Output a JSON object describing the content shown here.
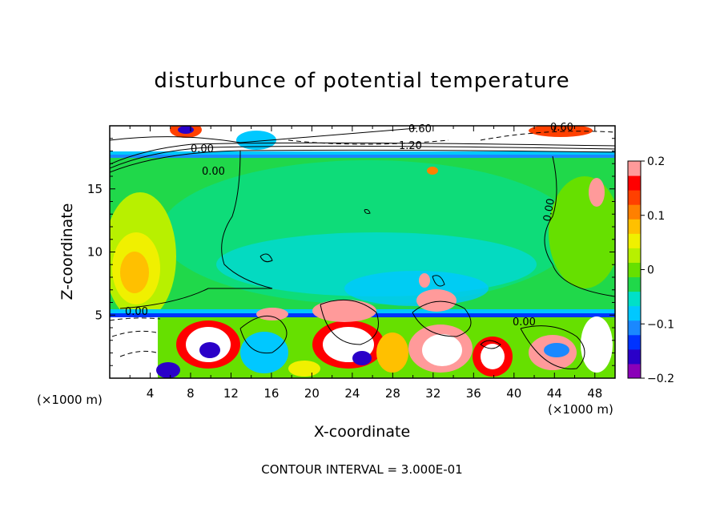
{
  "chart_data": {
    "type": "heatmap",
    "title": "disturbunce of potential temperature",
    "xlabel": "X-coordinate",
    "ylabel": "Z-coordinate",
    "x_unit": "(×1000 m)",
    "xlim": [
      0,
      50
    ],
    "ylim": [
      0,
      20
    ],
    "x_ticks": [
      4,
      8,
      12,
      16,
      20,
      24,
      28,
      32,
      36,
      40,
      44,
      48
    ],
    "y_ticks": [
      5,
      10,
      15
    ],
    "colorbar": {
      "range": [
        -0.2,
        0.2
      ],
      "ticks": [
        0.2,
        0.1,
        0,
        -0.1,
        -0.2
      ],
      "tick_labels": [
        "0.2",
        "0.1",
        "0",
        "−0.1",
        "−0.2"
      ],
      "colors": [
        "#8a00b8",
        "#2a00c8",
        "#0033ff",
        "#1a88ff",
        "#00c8ff",
        "#00e0c8",
        "#20d84a",
        "#66e000",
        "#b8f000",
        "#f0f000",
        "#ffc000",
        "#ff8000",
        "#ff4000",
        "#ff0000",
        "#ff9a9a"
      ]
    },
    "contour_labels": [
      "0.00",
      "0.00",
      "0.00",
      "0.00",
      "0.00",
      "0.60",
      "0.60",
      "1.20"
    ],
    "footer": "CONTOUR INTERVAL = 3.000E-01"
  }
}
